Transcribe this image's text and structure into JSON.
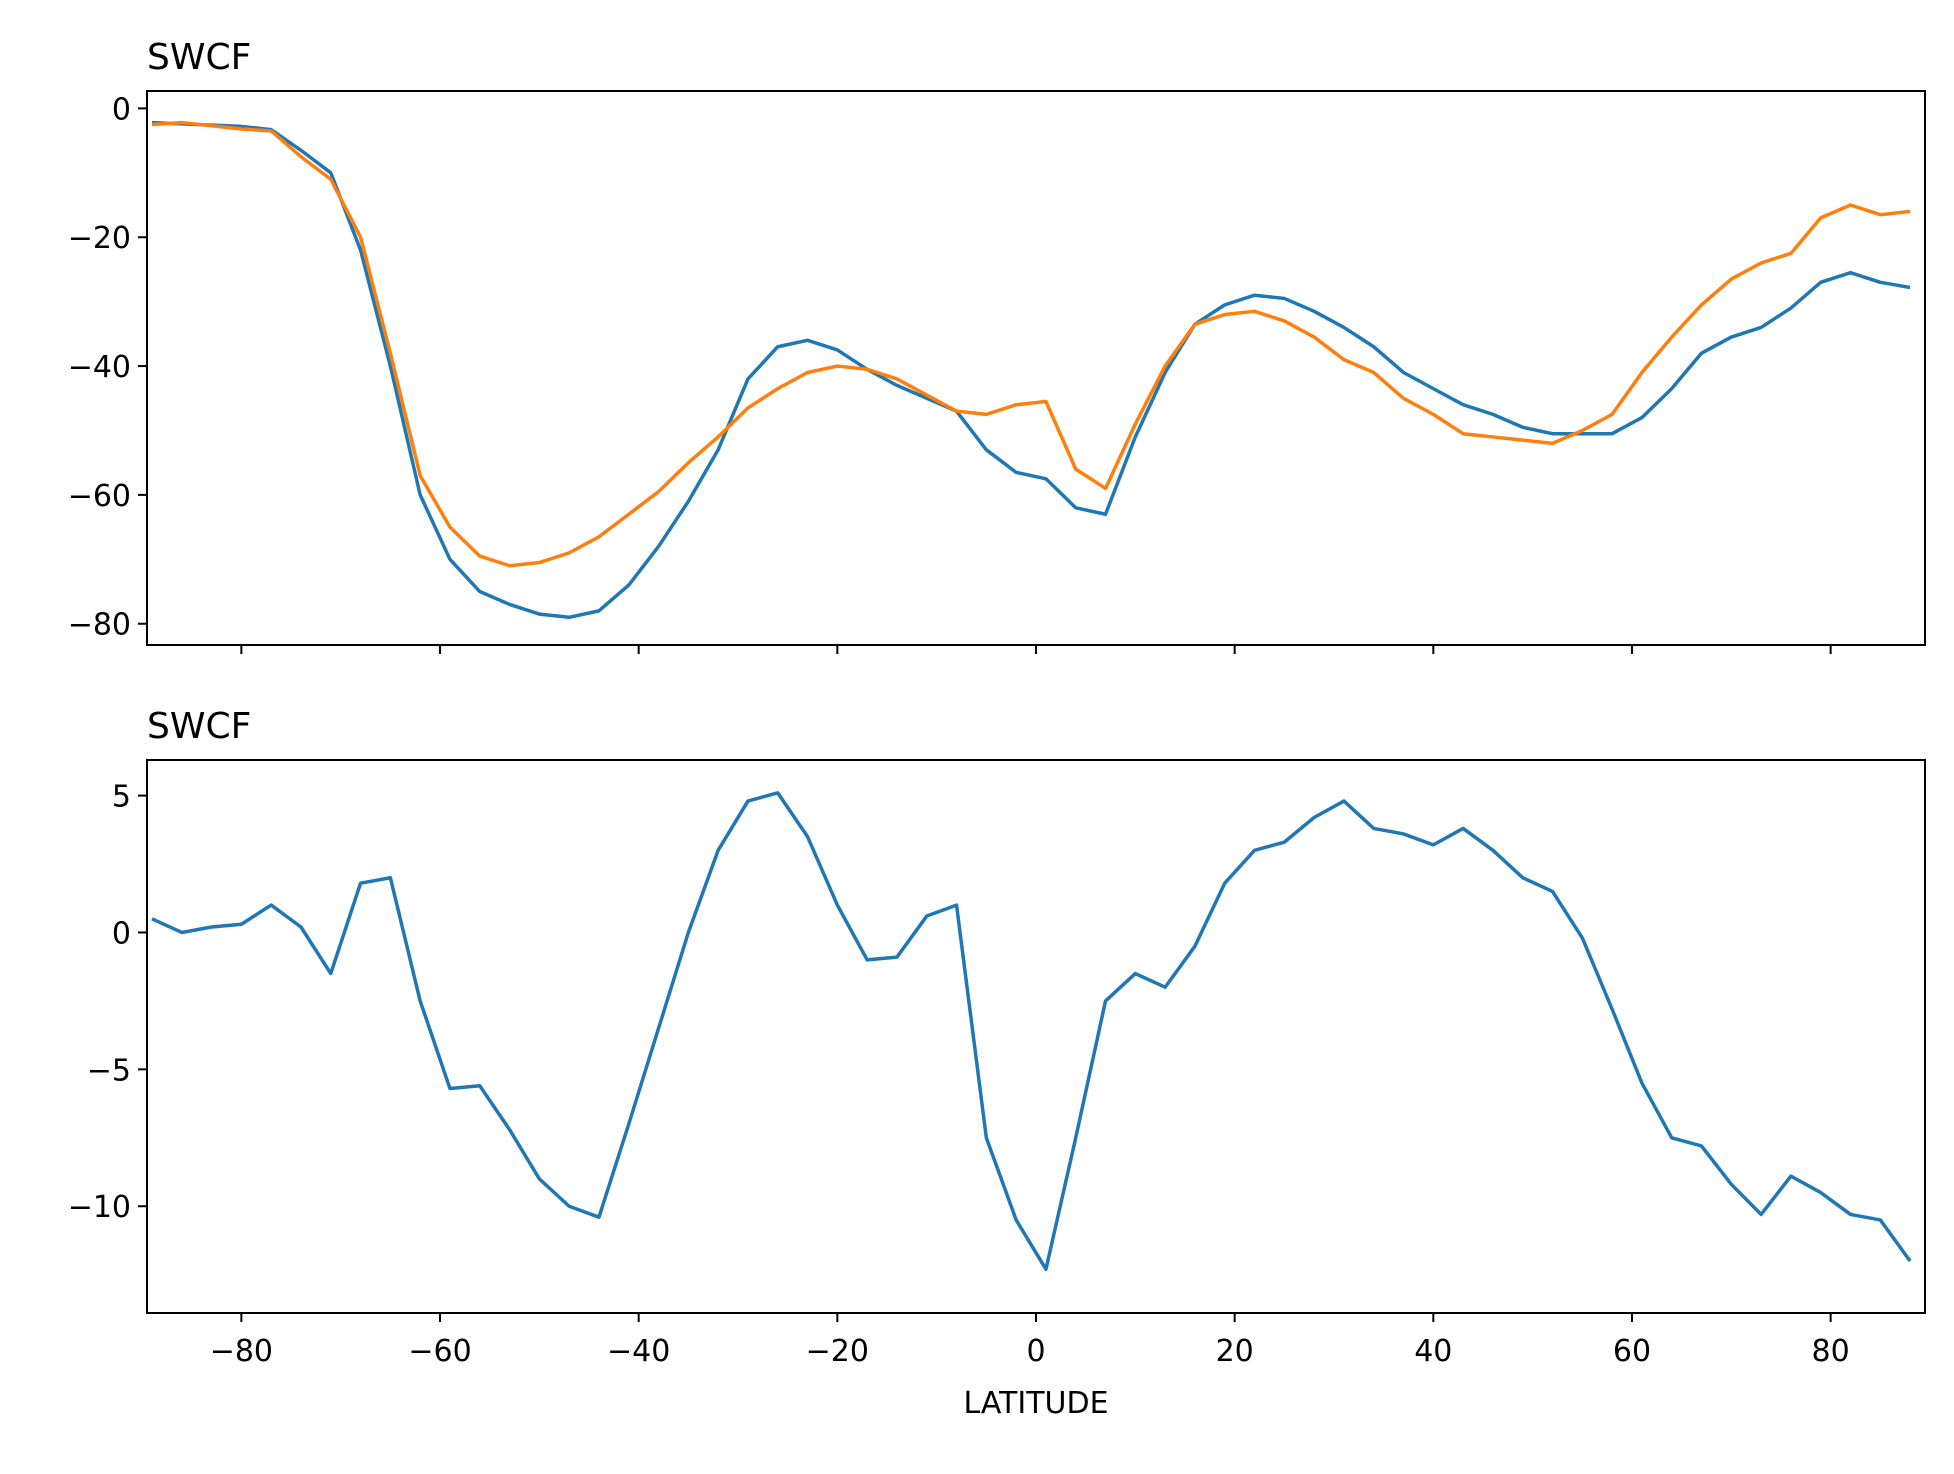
{
  "chart_data": [
    {
      "type": "line",
      "title": "SWCF",
      "x": [
        -89,
        -86,
        -83,
        -80,
        -77,
        -74,
        -71,
        -68,
        -65,
        -62,
        -59,
        -56,
        -53,
        -50,
        -47,
        -44,
        -41,
        -38,
        -35,
        -32,
        -29,
        -26,
        -23,
        -20,
        -17,
        -14,
        -11,
        -8,
        -5,
        -2,
        1,
        4,
        7,
        10,
        13,
        16,
        19,
        22,
        25,
        28,
        31,
        34,
        37,
        40,
        43,
        46,
        49,
        52,
        55,
        58,
        61,
        64,
        67,
        70,
        73,
        76,
        79,
        82,
        85,
        88
      ],
      "series": [
        {
          "color": "#1f77b4",
          "values": [
            -2.2,
            -2.4,
            -2.6,
            -2.8,
            -3.3,
            -6.5,
            -10,
            -22,
            -40,
            -60,
            -70,
            -75,
            -77,
            -78.5,
            -79,
            -78,
            -74,
            -68,
            -61,
            -53,
            -42,
            -37,
            -36,
            -37.5,
            -40.5,
            -43,
            -45,
            -47,
            -53,
            -56.5,
            -57.5,
            -62,
            -63,
            -51,
            -41,
            -33.5,
            -30.5,
            -29,
            -29.5,
            -31.5,
            -34,
            -37,
            -41,
            -43.5,
            -46,
            -47.5,
            -49.5,
            -50.5,
            -50.5,
            -50.5,
            -48,
            -43.5,
            -38,
            -35.5,
            -34,
            -31,
            -27,
            -25.5,
            -27,
            -27.8
          ]
        },
        {
          "color": "#ff7f0e",
          "values": [
            -2.5,
            -2.2,
            -2.7,
            -3.2,
            -3.5,
            -7.5,
            -11,
            -20,
            -38,
            -57,
            -65,
            -69.5,
            -71,
            -70.5,
            -69,
            -66.5,
            -63,
            -59.5,
            -55,
            -51,
            -46.5,
            -43.5,
            -41,
            -40,
            -40.5,
            -42,
            -44.5,
            -47,
            -47.5,
            -46,
            -45.5,
            -56,
            -59,
            -49,
            -40,
            -33.5,
            -32,
            -31.5,
            -33,
            -35.5,
            -39,
            -41,
            -45,
            -47.5,
            -50.5,
            -51,
            -51.5,
            -52,
            -50,
            -47.5,
            -41,
            -35.5,
            -30.5,
            -26.5,
            -24,
            -22.5,
            -17,
            -15,
            -16.5,
            -16
          ]
        }
      ],
      "xlim": [
        -89.5,
        89.5
      ],
      "xticks": [
        -80,
        -60,
        -40,
        -20,
        0,
        20,
        40,
        60,
        80
      ],
      "ylim": [
        -83.3,
        2.7
      ],
      "yticks": [
        0,
        {
          "value": -20,
          "label": "−20"
        },
        {
          "value": -40,
          "label": "−40"
        },
        {
          "value": -60,
          "label": "−60"
        },
        {
          "value": -80,
          "label": "−80"
        }
      ]
    },
    {
      "type": "line",
      "title": "SWCF",
      "xlabel": "LATITUDE",
      "x": [
        -89,
        -86,
        -83,
        -80,
        -77,
        -74,
        -71,
        -68,
        -65,
        -62,
        -59,
        -56,
        -53,
        -50,
        -47,
        -44,
        -41,
        -38,
        -35,
        -32,
        -29,
        -26,
        -23,
        -20,
        -17,
        -14,
        -11,
        -8,
        -5,
        -2,
        1,
        4,
        7,
        10,
        13,
        16,
        19,
        22,
        25,
        28,
        31,
        34,
        37,
        40,
        43,
        46,
        49,
        52,
        55,
        58,
        61,
        64,
        67,
        70,
        73,
        76,
        79,
        82,
        85,
        88
      ],
      "series": [
        {
          "color": "#1f77b4",
          "values": [
            0.5,
            0,
            0.2,
            0.3,
            1.0,
            0.2,
            -1.5,
            1.8,
            2.0,
            -2.5,
            -5.7,
            -5.6,
            -7.2,
            -9.0,
            -10.0,
            -10.4,
            -7.0,
            -3.5,
            0.0,
            3.0,
            4.8,
            5.1,
            3.5,
            1.0,
            -1.0,
            -0.9,
            0.6,
            1.0,
            -7.5,
            -10.5,
            -12.3,
            -7.5,
            -2.5,
            -1.5,
            -2.0,
            -0.5,
            1.8,
            3.0,
            3.3,
            4.2,
            4.8,
            3.8,
            3.6,
            3.2,
            3.8,
            3.0,
            2.0,
            1.5,
            -0.2,
            -2.8,
            -5.5,
            -7.5,
            -7.8,
            -9.2,
            -10.3,
            -8.9,
            -9.5,
            -10.3,
            -10.5,
            -12.0
          ]
        }
      ],
      "xlim": [
        -89.5,
        89.5
      ],
      "xticks": [
        {
          "value": -80,
          "label": "−80"
        },
        {
          "value": -60,
          "label": "−60"
        },
        {
          "value": -40,
          "label": "−40"
        },
        {
          "value": -20,
          "label": "−20"
        },
        0,
        20,
        40,
        60,
        80
      ],
      "ylim": [
        -13.9,
        6.3
      ],
      "yticks": [
        5,
        0,
        {
          "value": -5,
          "label": "−5"
        },
        {
          "value": -10,
          "label": "−10"
        }
      ]
    }
  ]
}
